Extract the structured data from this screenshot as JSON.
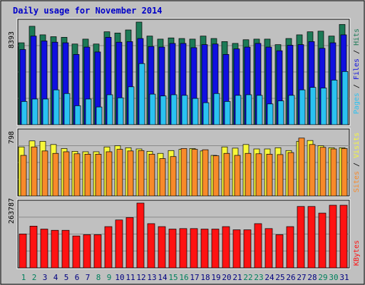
{
  "chart_data": [
    {
      "type": "bar",
      "title": "Daily usage for November 2014",
      "panel": "hits-files-pages",
      "categories": [
        "1",
        "2",
        "3",
        "4",
        "5",
        "6",
        "7",
        "8",
        "9",
        "10",
        "11",
        "12",
        "13",
        "14",
        "15",
        "16",
        "17",
        "18",
        "19",
        "20",
        "21",
        "22",
        "23",
        "24",
        "25",
        "26",
        "27",
        "28",
        "29",
        "30",
        "31"
      ],
      "ymax_label": "8393",
      "ymax": 8393,
      "right_axis_labels": [
        "Pages",
        "Files",
        "Hits"
      ],
      "series": [
        {
          "name": "Hits",
          "color": "#1c7a56",
          "values": [
            6700,
            8050,
            7350,
            7200,
            7150,
            6600,
            7000,
            6600,
            7600,
            7500,
            7750,
            8393,
            7250,
            7000,
            7100,
            7050,
            7000,
            7250,
            7050,
            6800,
            6650,
            6950,
            7000,
            7000,
            6550,
            7050,
            7350,
            7600,
            7650,
            7250,
            8200
          ]
        },
        {
          "name": "Files",
          "color": "#1010e0",
          "values": [
            6150,
            7250,
            6850,
            6750,
            6700,
            5750,
            6350,
            5950,
            7150,
            6750,
            6800,
            7050,
            6400,
            6350,
            6650,
            6650,
            6300,
            6550,
            6600,
            5750,
            6200,
            6350,
            6650,
            6350,
            6050,
            6500,
            6550,
            6800,
            6250,
            6700,
            7350
          ]
        },
        {
          "name": "Pages",
          "color": "#2ac2f2",
          "values": [
            1900,
            2100,
            2100,
            2850,
            2550,
            1550,
            2100,
            1450,
            2450,
            2200,
            3100,
            5000,
            2500,
            2350,
            2450,
            2400,
            2150,
            1800,
            2550,
            1900,
            2400,
            2450,
            2400,
            1700,
            1950,
            2400,
            2850,
            3050,
            3000,
            3650,
            4350
          ]
        }
      ]
    },
    {
      "type": "bar",
      "panel": "sites-visits",
      "categories": [
        "1",
        "2",
        "3",
        "4",
        "5",
        "6",
        "7",
        "8",
        "9",
        "10",
        "11",
        "12",
        "13",
        "14",
        "15",
        "16",
        "17",
        "18",
        "19",
        "20",
        "21",
        "22",
        "23",
        "24",
        "25",
        "26",
        "27",
        "28",
        "29",
        "30",
        "31"
      ],
      "ymax_label": "798",
      "ymax": 798,
      "right_axis_labels": [
        "Sites",
        "Visits"
      ],
      "series": [
        {
          "name": "Visits",
          "color": "#f8f83a",
          "values": [
            610,
            685,
            680,
            640,
            590,
            555,
            550,
            550,
            610,
            625,
            600,
            585,
            555,
            530,
            565,
            580,
            590,
            560,
            505,
            610,
            595,
            640,
            585,
            585,
            600,
            565,
            680,
            690,
            625,
            600,
            600
          ]
        },
        {
          "name": "Sites",
          "color": "#f88a2a",
          "values": [
            505,
            610,
            560,
            530,
            550,
            525,
            520,
            520,
            550,
            580,
            560,
            565,
            520,
            465,
            490,
            590,
            580,
            575,
            500,
            530,
            505,
            530,
            525,
            520,
            515,
            540,
            720,
            640,
            605,
            585,
            590
          ]
        }
      ]
    },
    {
      "type": "bar",
      "panel": "kbytes",
      "categories": [
        "1",
        "2",
        "3",
        "4",
        "5",
        "6",
        "7",
        "8",
        "9",
        "10",
        "11",
        "12",
        "13",
        "14",
        "15",
        "16",
        "17",
        "18",
        "19",
        "20",
        "21",
        "22",
        "23",
        "24",
        "25",
        "26",
        "27",
        "28",
        "29",
        "30",
        "31"
      ],
      "ymax_label": "263787",
      "ymax": 263787,
      "right_axis_labels": [
        "KBytes"
      ],
      "series": [
        {
          "name": "KBytes",
          "color": "#ff1212",
          "values": [
            138000,
            170000,
            158000,
            153000,
            153000,
            130000,
            135000,
            135000,
            168000,
            195000,
            205000,
            263787,
            180000,
            168000,
            158000,
            160000,
            160000,
            158000,
            158000,
            168000,
            155000,
            155000,
            180000,
            160000,
            135000,
            168000,
            250000,
            250000,
            223000,
            255000,
            255000
          ]
        }
      ]
    }
  ],
  "x_label_colors": {
    "weekend": "#00805c",
    "weekday": "#000080"
  },
  "weekend_days": [
    "1",
    "2",
    "8",
    "9",
    "15",
    "16",
    "22",
    "23",
    "29",
    "30"
  ]
}
